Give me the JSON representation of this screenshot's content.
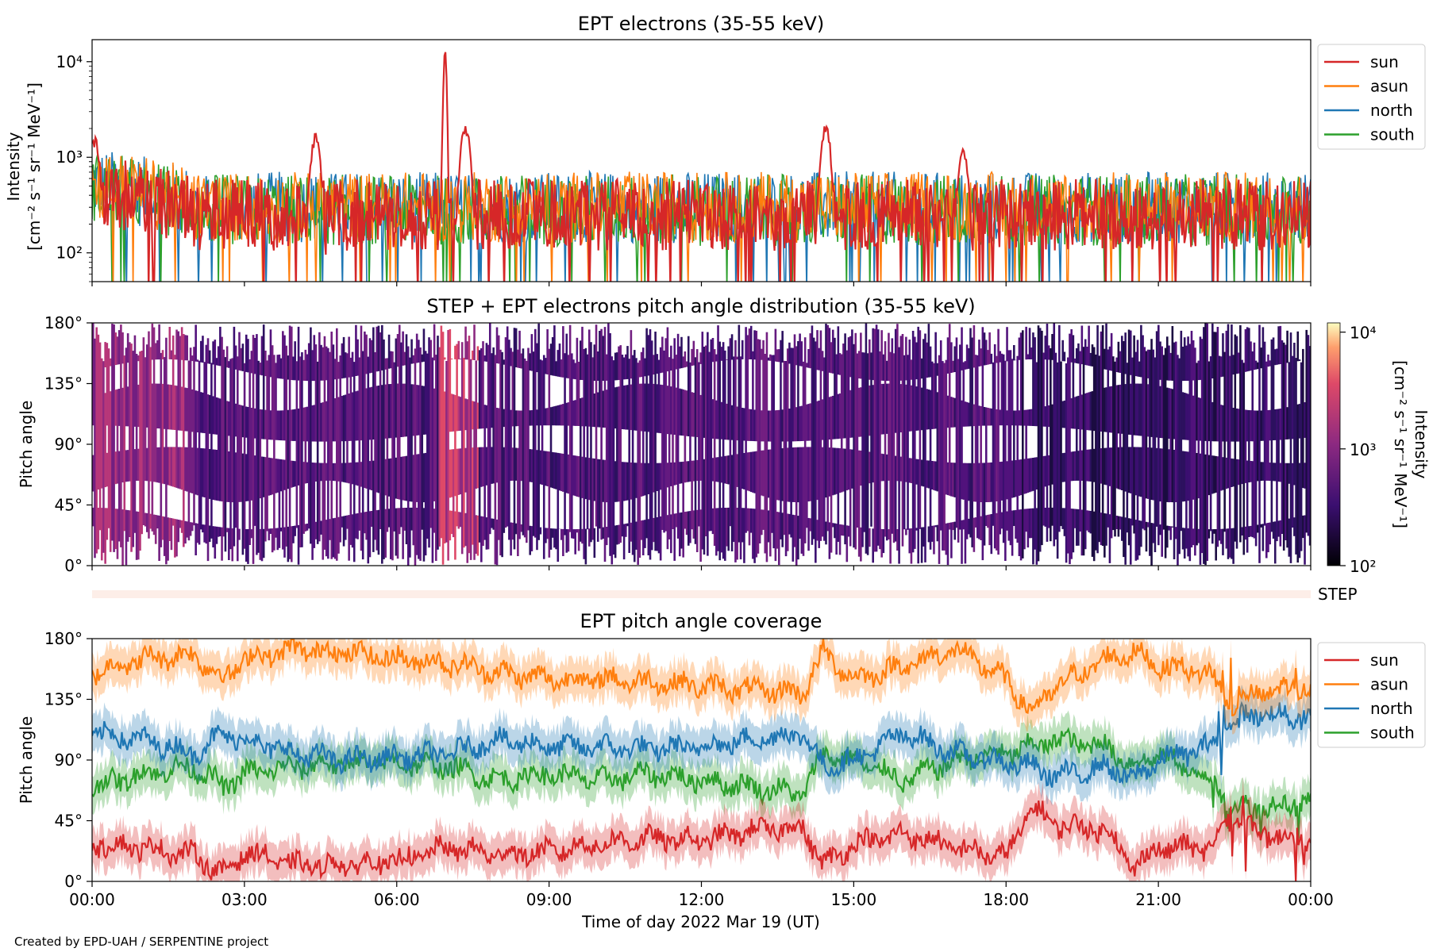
{
  "footer": "Created by EPD-UAH / SERPENTINE project",
  "colors": {
    "sun": "#d62728",
    "asun": "#ff7f0e",
    "north": "#1f77b4",
    "south": "#2ca02c"
  },
  "chart_data": [
    {
      "type": "line",
      "title": "EPT electrons (35-55 keV)",
      "ylabel_line1": "Intensity",
      "ylabel_line2": "[cm⁻² s⁻¹ sr⁻¹ MeV⁻¹]",
      "yscale": "log",
      "ylim": [
        50,
        17000
      ],
      "yticks": [
        "10²",
        "10³",
        "10⁴"
      ],
      "xlim": [
        0,
        24
      ],
      "legend": {
        "placement": "outside-right",
        "entries": [
          "sun",
          "asun",
          "north",
          "south"
        ]
      },
      "series": [
        {
          "name": "sun",
          "baseline": 250,
          "peaks": [
            [
              0.05,
              1500
            ],
            [
              4.4,
              1600
            ],
            [
              6.95,
              12000
            ],
            [
              7.35,
              2000
            ],
            [
              14.45,
              2000
            ],
            [
              17.15,
              1200
            ]
          ]
        },
        {
          "name": "asun",
          "baseline": 300,
          "peaks": []
        },
        {
          "name": "north",
          "baseline": 300,
          "peaks": []
        },
        {
          "name": "south",
          "baseline": 280,
          "peaks": []
        }
      ]
    },
    {
      "type": "heatmap",
      "title": "STEP + EPT electrons pitch angle distribution (35-55 keV)",
      "ylabel": "Pitch angle",
      "ylim": [
        0,
        180
      ],
      "yticks": [
        "0°",
        "45°",
        "90°",
        "135°",
        "180°"
      ],
      "xlim": [
        0,
        24
      ],
      "colorbar": {
        "label_line1": "Intensity",
        "label_line2": "[cm⁻² s⁻¹ sr⁻¹ MeV⁻¹]",
        "scale": "log",
        "range": [
          100,
          12000
        ],
        "ticks": [
          "10²",
          "10³",
          "10⁴"
        ]
      },
      "step_label": "STEP"
    },
    {
      "type": "line",
      "title": "EPT pitch angle coverage",
      "ylabel": "Pitch angle",
      "xlabel": "Time of day 2022 Mar 19 (UT)",
      "ylim": [
        0,
        180
      ],
      "yticks": [
        "0°",
        "45°",
        "90°",
        "135°",
        "180°"
      ],
      "xlim": [
        0,
        24
      ],
      "xticks": [
        "00:00",
        "03:00",
        "06:00",
        "09:00",
        "12:00",
        "15:00",
        "18:00",
        "21:00",
        "00:00"
      ],
      "legend": {
        "placement": "outside-right",
        "entries": [
          "sun",
          "asun",
          "north",
          "south"
        ]
      },
      "series": [
        {
          "name": "sun",
          "x": [
            0,
            1,
            2,
            2.6,
            3,
            4,
            5,
            6,
            7,
            8,
            9,
            10,
            11,
            12,
            13,
            14,
            14.4,
            15,
            16,
            17,
            18,
            18.5,
            19,
            20,
            20.5,
            21,
            22,
            22.5,
            23,
            24
          ],
          "y": [
            28,
            25,
            20,
            5,
            22,
            12,
            12,
            15,
            25,
            20,
            22,
            28,
            32,
            30,
            38,
            40,
            12,
            28,
            35,
            25,
            18,
            55,
            42,
            38,
            10,
            25,
            25,
            50,
            35,
            30
          ]
        },
        {
          "name": "asun",
          "x": [
            0,
            1,
            2,
            2.6,
            3,
            4,
            5,
            6,
            7,
            8,
            9,
            10,
            11,
            12,
            13,
            14,
            14.4,
            15,
            16,
            17,
            18,
            18.5,
            19,
            20,
            20.5,
            21,
            22,
            22.5,
            23,
            24
          ],
          "y": [
            155,
            165,
            168,
            150,
            165,
            172,
            170,
            165,
            162,
            155,
            150,
            150,
            148,
            145,
            142,
            140,
            170,
            150,
            160,
            172,
            150,
            125,
            145,
            165,
            170,
            160,
            155,
            130,
            140,
            145
          ]
        },
        {
          "name": "north",
          "x": [
            0,
            1,
            2,
            2.6,
            3,
            4,
            5,
            6,
            7,
            8,
            9,
            10,
            11,
            12,
            13,
            14,
            14.4,
            15,
            16,
            17,
            18,
            18.5,
            19,
            20,
            20.5,
            21,
            22,
            22.5,
            23,
            24
          ],
          "y": [
            110,
            105,
            95,
            110,
            105,
            95,
            90,
            92,
            95,
            105,
            100,
            100,
            98,
            100,
            105,
            110,
            85,
            90,
            110,
            95,
            88,
            85,
            78,
            85,
            75,
            90,
            100,
            120,
            125,
            120
          ]
        },
        {
          "name": "south",
          "x": [
            0,
            1,
            2,
            2.6,
            3,
            4,
            5,
            6,
            7,
            8,
            9,
            10,
            11,
            12,
            13,
            14,
            14.4,
            15,
            16,
            17,
            18,
            18.5,
            19,
            20,
            20.5,
            21,
            22,
            22.5,
            23,
            24
          ],
          "y": [
            70,
            80,
            85,
            70,
            80,
            85,
            88,
            88,
            85,
            75,
            80,
            75,
            80,
            75,
            70,
            65,
            95,
            90,
            75,
            90,
            95,
            100,
            105,
            100,
            85,
            95,
            75,
            55,
            55,
            60
          ]
        }
      ]
    }
  ]
}
